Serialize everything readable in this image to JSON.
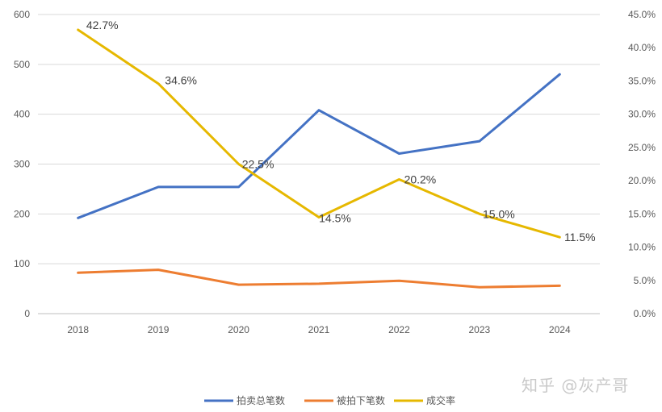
{
  "watermark": "知乎 @灰产哥",
  "chart_data": {
    "type": "line",
    "categories": [
      "2018",
      "2019",
      "2020",
      "2021",
      "2022",
      "2023",
      "2024"
    ],
    "y_left": {
      "ylim": [
        0,
        600
      ],
      "ticks": [
        "0",
        "100",
        "200",
        "300",
        "400",
        "500",
        "600"
      ]
    },
    "y_right": {
      "ylim": [
        0,
        45
      ],
      "ticks": [
        "0.0%",
        "5.0%",
        "10.0%",
        "15.0%",
        "20.0%",
        "25.0%",
        "30.0%",
        "35.0%",
        "40.0%",
        "45.0%"
      ]
    },
    "grid": true,
    "legend_position": "bottom",
    "series": [
      {
        "name": "拍卖总笔数",
        "axis": "left",
        "color": "#4472C4",
        "values": [
          192,
          254,
          254,
          408,
          321,
          346,
          480
        ]
      },
      {
        "name": "被拍下笔数",
        "axis": "left",
        "color": "#ED7D31",
        "values": [
          82,
          88,
          58,
          60,
          66,
          53,
          56
        ]
      },
      {
        "name": "成交率",
        "axis": "right",
        "color": "#E6B800",
        "values": [
          42.7,
          34.6,
          22.5,
          14.5,
          20.2,
          15.0,
          11.5
        ],
        "labels": [
          "42.7%",
          "34.6%",
          "22.5%",
          "14.5%",
          "20.2%",
          "15.0%",
          "11.5%"
        ]
      }
    ]
  }
}
